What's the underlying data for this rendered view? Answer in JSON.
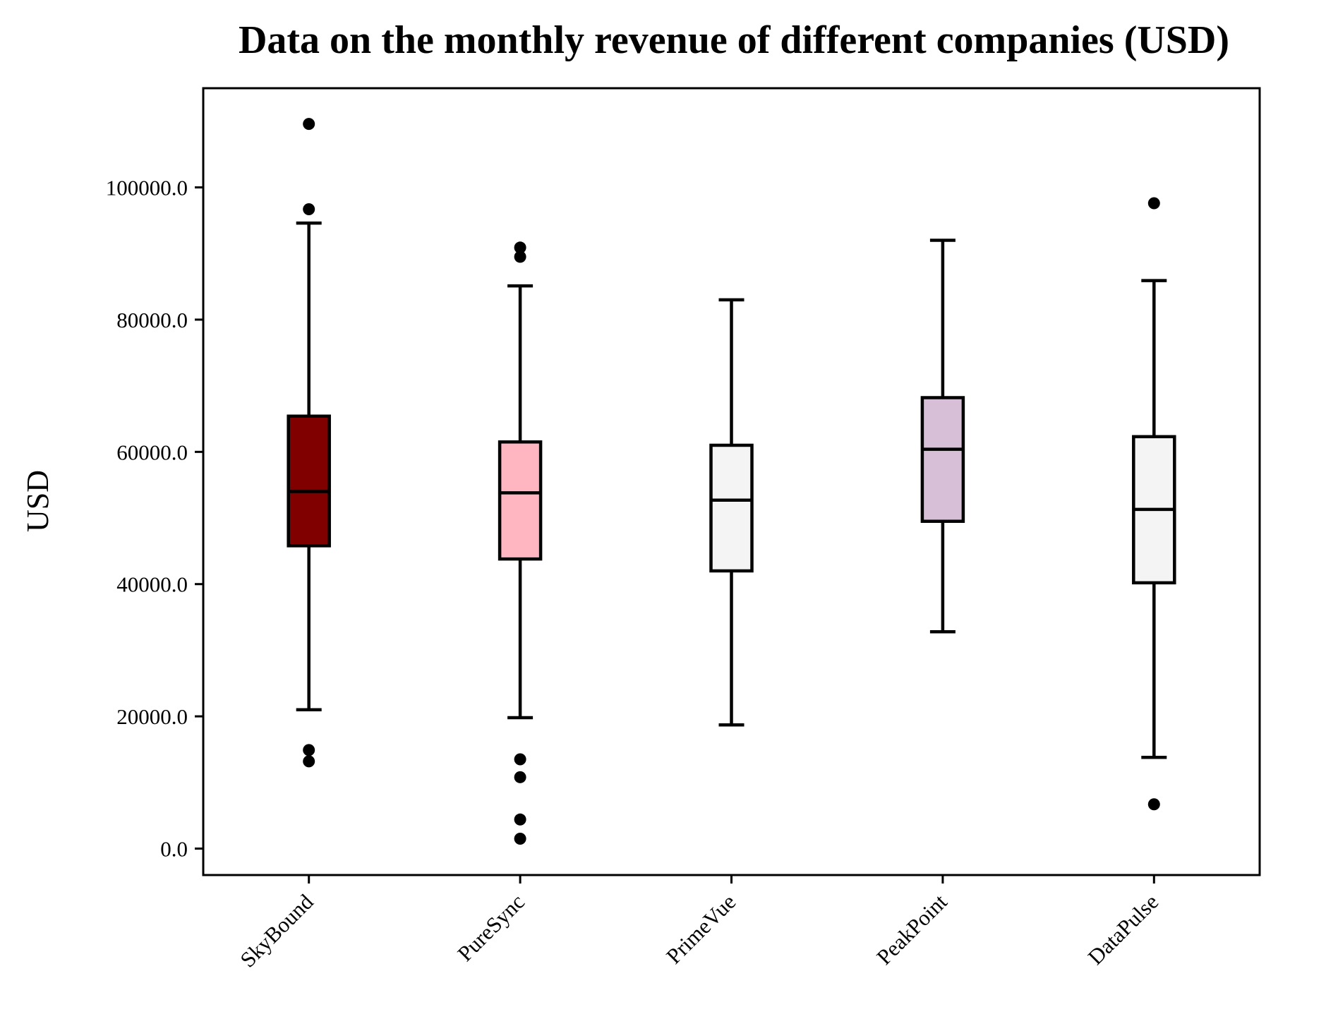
{
  "chart_data": {
    "type": "box",
    "title": "Data on the monthly revenue of different companies (USD)",
    "xlabel": "",
    "ylabel": "USD",
    "ylim": [
      -4000,
      115000
    ],
    "yticks": [
      0,
      20000,
      40000,
      60000,
      80000,
      100000
    ],
    "ytick_labels": [
      "0.0",
      "20000.0",
      "40000.0",
      "60000.0",
      "80000.0",
      "100000.0"
    ],
    "grid": false,
    "legend": "none",
    "categories": [
      "SkyBound",
      "PureSync",
      "PrimeVue",
      "PeakPoint",
      "DataPulse"
    ],
    "boxes": [
      {
        "name": "SkyBound",
        "color": "#800000",
        "whisker_low": 21000,
        "q1": 45800,
        "median": 54000,
        "q3": 65400,
        "whisker_high": 94600,
        "outliers": [
          109600,
          96700,
          14900,
          13200
        ]
      },
      {
        "name": "PureSync",
        "color": "#FFB6C1",
        "whisker_low": 19800,
        "q1": 43800,
        "median": 53800,
        "q3": 61500,
        "whisker_high": 85100,
        "outliers": [
          90900,
          89500,
          13500,
          10800,
          4400,
          1500
        ]
      },
      {
        "name": "PrimeVue",
        "color": "#F4F4F4",
        "whisker_low": 18700,
        "q1": 42000,
        "median": 52700,
        "q3": 61000,
        "whisker_high": 83000,
        "outliers": []
      },
      {
        "name": "PeakPoint",
        "color": "#D8BFD8",
        "whisker_low": 32800,
        "q1": 49500,
        "median": 60400,
        "q3": 68200,
        "whisker_high": 92000,
        "outliers": []
      },
      {
        "name": "DataPulse",
        "color": "#F4F4F4",
        "whisker_low": 13800,
        "q1": 40200,
        "median": 51300,
        "q3": 62300,
        "whisker_high": 85900,
        "outliers": [
          97600,
          6700
        ]
      }
    ]
  }
}
